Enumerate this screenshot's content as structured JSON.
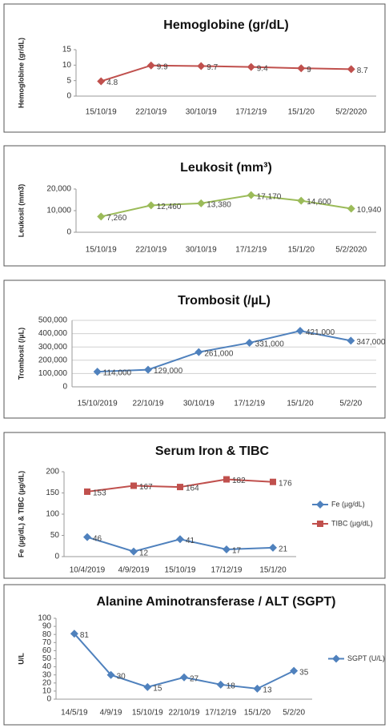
{
  "chart_data": [
    {
      "type": "line",
      "title": "Hemoglobine (gr/dL)",
      "y_label": "Hemoglobine (gr/dL)",
      "categories": [
        "15/10/19",
        "22/10/19",
        "30/10/19",
        "17/12/19",
        "15/1/20",
        "5/2/2020"
      ],
      "values": [
        4.8,
        9.9,
        9.7,
        9.4,
        9,
        8.7
      ],
      "color": "#c0504d",
      "marker": "diamond",
      "ylim": [
        0,
        15
      ],
      "yticks": [
        0,
        5,
        10,
        15
      ],
      "grid": false
    },
    {
      "type": "line",
      "title": "Leukosit (mm³)",
      "y_label": "Leukosit (mm3)",
      "categories": [
        "15/10/19",
        "22/10/19",
        "30/10/19",
        "17/12/19",
        "15/1/20",
        "5/2/2020"
      ],
      "values": [
        7260,
        12460,
        13380,
        17170,
        14600,
        10940
      ],
      "value_labels": [
        "7,260",
        "12,460",
        "13,380",
        "17,170",
        "14,600",
        "10,940"
      ],
      "color": "#9bbb59",
      "marker": "diamond",
      "ylim": [
        0,
        20000
      ],
      "yticks": [
        0,
        {
          "value": 10000,
          "label": "10,000"
        },
        {
          "value": 20000,
          "label": "20,000"
        }
      ],
      "grid": false
    },
    {
      "type": "line",
      "title": "Trombosit (/µL)",
      "y_label": "Trombosit (/µL)",
      "categories": [
        "15/10/2019",
        "22/10/19",
        "30/10/19",
        "17/12/19",
        "15/1/20",
        "5/2/20"
      ],
      "values": [
        114000,
        129000,
        261000,
        331000,
        421000,
        347000
      ],
      "value_labels": [
        "114,000",
        "129,000",
        "261,000",
        "331,000",
        "421,000",
        "347,000"
      ],
      "color": "#4f81bd",
      "marker": "diamond",
      "ylim": [
        0,
        500000
      ],
      "yticks": [
        0,
        {
          "value": 100000,
          "label": "100,000"
        },
        {
          "value": 200000,
          "label": "200,000"
        },
        {
          "value": 300000,
          "label": "300,000"
        },
        {
          "value": 400000,
          "label": "400,000"
        },
        {
          "value": 500000,
          "label": "500,000"
        }
      ],
      "grid": true
    },
    {
      "type": "line",
      "title": "Serum Iron & TIBC",
      "y_label": "Fe (µg/dL) & TIBC (µg/dL)",
      "categories": [
        "10/4/2019",
        "4/9/2019",
        "15/10/19",
        "17/12/19",
        "15/1/20"
      ],
      "series": [
        {
          "name": "Fe (µg/dL)",
          "color": "#4f81bd",
          "marker": "diamond",
          "values": [
            46,
            12,
            41,
            17,
            21
          ]
        },
        {
          "name": "TIBC (µg/dL)",
          "color": "#c0504d",
          "marker": "square",
          "values": [
            153,
            167,
            164,
            182,
            176
          ]
        }
      ],
      "ylim": [
        0,
        200
      ],
      "yticks": [
        0,
        50,
        100,
        150,
        200
      ],
      "grid": false,
      "legend": "right"
    },
    {
      "type": "line",
      "title": "Alanine Aminotransferase / ALT (SGPT)",
      "y_label": "U/L",
      "categories": [
        "14/5/19",
        "4/9/19",
        "15/10/19",
        "22/10/19",
        "17/12/19",
        "15/1/20",
        "5/2/20"
      ],
      "series": [
        {
          "name": "SGPT (U/L)",
          "color": "#4f81bd",
          "marker": "diamond",
          "values": [
            81,
            30,
            15,
            27,
            18,
            13,
            35
          ]
        }
      ],
      "ylim": [
        0,
        100
      ],
      "yticks": [
        0,
        10,
        20,
        30,
        40,
        50,
        60,
        70,
        80,
        90,
        100
      ],
      "grid": false,
      "legend": "right"
    }
  ]
}
